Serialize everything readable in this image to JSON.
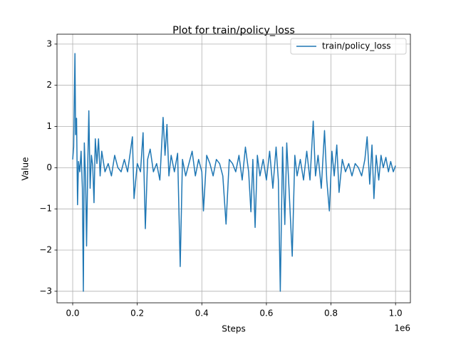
{
  "chart_data": {
    "type": "line",
    "title": "Plot for train/policy_loss",
    "x_label": "Steps",
    "y_label": "Value",
    "x_offset_label": "1e6",
    "x": [
      0,
      3000,
      7000,
      9000,
      12000,
      15000,
      18000,
      22000,
      26000,
      30000,
      33000,
      36000,
      40000,
      43000,
      47000,
      50000,
      54000,
      58000,
      62000,
      66000,
      70000,
      75000,
      80000,
      85000,
      90000,
      100000,
      110000,
      120000,
      130000,
      140000,
      150000,
      160000,
      170000,
      178000,
      185000,
      190000,
      200000,
      210000,
      218000,
      225000,
      232000,
      240000,
      250000,
      260000,
      270000,
      280000,
      286000,
      292000,
      298000,
      305000,
      315000,
      325000,
      333000,
      340000,
      350000,
      360000,
      370000,
      380000,
      390000,
      400000,
      405000,
      415000,
      425000,
      435000,
      445000,
      455000,
      465000,
      475000,
      485000,
      495000,
      505000,
      515000,
      525000,
      535000,
      545000,
      552000,
      558000,
      565000,
      572000,
      580000,
      590000,
      600000,
      610000,
      620000,
      630000,
      637000,
      643000,
      650000,
      657000,
      663000,
      670000,
      680000,
      688000,
      695000,
      705000,
      715000,
      725000,
      735000,
      745000,
      752000,
      760000,
      770000,
      780000,
      787000,
      795000,
      803000,
      810000,
      818000,
      825000,
      835000,
      845000,
      855000,
      865000,
      875000,
      885000,
      895000,
      905000,
      912000,
      920000,
      927000,
      933000,
      940000,
      948000,
      955000,
      962000,
      970000,
      978000,
      985000,
      993000,
      1000000
    ],
    "series": [
      {
        "name": "train/policy_loss",
        "color": "#1f77b4",
        "values": [
          0.2,
          0.5,
          2.77,
          0.8,
          1.2,
          -0.9,
          0.15,
          -0.1,
          0.4,
          -0.5,
          -3.0,
          0.6,
          -0.3,
          -1.9,
          0.2,
          1.38,
          -0.5,
          0.3,
          0.05,
          -0.85,
          0.7,
          0.1,
          0.7,
          -0.2,
          0.4,
          -0.1,
          0.1,
          -0.2,
          0.3,
          0.0,
          -0.1,
          0.2,
          -0.1,
          0.35,
          0.75,
          -0.75,
          0.1,
          -0.1,
          0.85,
          -1.48,
          0.2,
          0.45,
          -0.1,
          0.1,
          -0.3,
          1.22,
          0.3,
          1.05,
          -0.2,
          0.3,
          -0.1,
          0.35,
          -2.4,
          0.2,
          -0.2,
          0.1,
          0.4,
          -0.2,
          0.2,
          -0.1,
          -1.05,
          0.3,
          0.1,
          -0.2,
          0.2,
          0.1,
          -0.2,
          -1.37,
          0.2,
          0.1,
          -0.1,
          0.3,
          -0.3,
          0.5,
          -0.1,
          -1.07,
          0.2,
          -1.45,
          0.3,
          -0.2,
          0.2,
          -0.3,
          0.4,
          -0.5,
          0.5,
          -0.3,
          -3.0,
          0.5,
          -1.38,
          0.6,
          -0.5,
          -2.15,
          0.3,
          -0.2,
          0.2,
          -0.3,
          0.4,
          -0.3,
          1.13,
          -0.2,
          0.3,
          -0.5,
          0.9,
          -0.3,
          -1.05,
          0.4,
          -0.2,
          0.55,
          -0.6,
          0.2,
          -0.1,
          0.1,
          -0.2,
          0.1,
          0.0,
          -0.2,
          0.2,
          0.75,
          -0.4,
          0.55,
          -0.75,
          0.3,
          -0.3,
          0.3,
          0.0,
          0.25,
          -0.1,
          0.15,
          -0.1,
          0.05
        ]
      }
    ],
    "xlim": [
      -48600,
      1046000
    ],
    "xticks": [
      {
        "value": 0,
        "label": "0.0"
      },
      {
        "value": 200000,
        "label": "0.2"
      },
      {
        "value": 400000,
        "label": "0.4"
      },
      {
        "value": 600000,
        "label": "0.6"
      },
      {
        "value": 800000,
        "label": "0.8"
      },
      {
        "value": 1000000,
        "label": "1.0"
      }
    ],
    "ylim": [
      -3.28,
      3.24
    ],
    "yticks": [
      {
        "value": -3,
        "label": "−3"
      },
      {
        "value": -2,
        "label": "−2"
      },
      {
        "value": -1,
        "label": "−1"
      },
      0,
      1,
      2,
      3
    ],
    "grid": true,
    "legend": "upper right"
  }
}
